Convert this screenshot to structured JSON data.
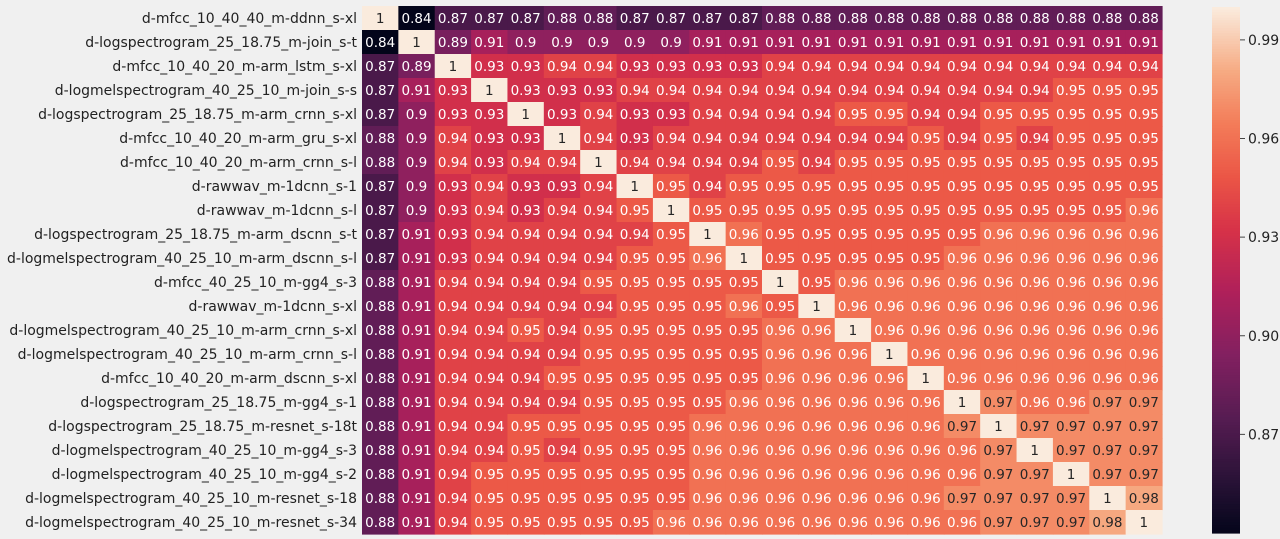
{
  "chart_data": {
    "type": "heatmap",
    "title": "",
    "xlabel": "",
    "ylabel": "",
    "labels": [
      "d-mfcc_10_40_40_m-ddnn_s-xl",
      "d-logspectrogram_25_18.75_m-join_s-t",
      "d-mfcc_10_40_20_m-arm_lstm_s-xl",
      "d-logmelspectrogram_40_25_10_m-join_s-s",
      "d-logspectrogram_25_18.75_m-arm_crnn_s-xl",
      "d-mfcc_10_40_20_m-arm_gru_s-xl",
      "d-mfcc_10_40_20_m-arm_crnn_s-l",
      "d-rawwav_m-1dcnn_s-1",
      "d-rawwav_m-1dcnn_s-l",
      "d-logspectrogram_25_18.75_m-arm_dscnn_s-t",
      "d-logmelspectrogram_40_25_10_m-arm_dscnn_s-l",
      "d-mfcc_40_25_10_m-gg4_s-3",
      "d-rawwav_m-1dcnn_s-xl",
      "d-logmelspectrogram_40_25_10_m-arm_crnn_s-xl",
      "d-logmelspectrogram_40_25_10_m-arm_crnn_s-l",
      "d-mfcc_10_40_20_m-arm_dscnn_s-xl",
      "d-logspectrogram_25_18.75_m-gg4_s-1",
      "d-logspectrogram_25_18.75_m-resnet_s-18t",
      "d-logmelspectrogram_40_25_10_m-gg4_s-3",
      "d-logmelspectrogram_40_25_10_m-gg4_s-2",
      "d-logmelspectrogram_40_25_10_m-resnet_s-18",
      "d-logmelspectrogram_40_25_10_m-resnet_s-34"
    ],
    "values": [
      [
        1,
        0.84,
        0.87,
        0.87,
        0.87,
        0.88,
        0.88,
        0.87,
        0.87,
        0.87,
        0.87,
        0.88,
        0.88,
        0.88,
        0.88,
        0.88,
        0.88,
        0.88,
        0.88,
        0.88,
        0.88,
        0.88
      ],
      [
        0.84,
        1,
        0.89,
        0.91,
        0.9,
        0.9,
        0.9,
        0.9,
        0.9,
        0.91,
        0.91,
        0.91,
        0.91,
        0.91,
        0.91,
        0.91,
        0.91,
        0.91,
        0.91,
        0.91,
        0.91,
        0.91
      ],
      [
        0.87,
        0.89,
        1,
        0.93,
        0.93,
        0.94,
        0.94,
        0.93,
        0.93,
        0.93,
        0.93,
        0.94,
        0.94,
        0.94,
        0.94,
        0.94,
        0.94,
        0.94,
        0.94,
        0.94,
        0.94,
        0.94
      ],
      [
        0.87,
        0.91,
        0.93,
        1,
        0.93,
        0.93,
        0.93,
        0.94,
        0.94,
        0.94,
        0.94,
        0.94,
        0.94,
        0.94,
        0.94,
        0.94,
        0.94,
        0.94,
        0.94,
        0.95,
        0.95,
        0.95
      ],
      [
        0.87,
        0.9,
        0.93,
        0.93,
        1,
        0.93,
        0.94,
        0.93,
        0.93,
        0.94,
        0.94,
        0.94,
        0.94,
        0.95,
        0.95,
        0.94,
        0.94,
        0.95,
        0.95,
        0.95,
        0.95,
        0.95
      ],
      [
        0.88,
        0.9,
        0.94,
        0.93,
        0.93,
        1,
        0.94,
        0.93,
        0.94,
        0.94,
        0.94,
        0.94,
        0.94,
        0.94,
        0.94,
        0.95,
        0.94,
        0.95,
        0.94,
        0.95,
        0.95,
        0.95
      ],
      [
        0.88,
        0.9,
        0.94,
        0.93,
        0.94,
        0.94,
        1,
        0.94,
        0.94,
        0.94,
        0.94,
        0.95,
        0.94,
        0.95,
        0.95,
        0.95,
        0.95,
        0.95,
        0.95,
        0.95,
        0.95,
        0.95
      ],
      [
        0.87,
        0.9,
        0.93,
        0.94,
        0.93,
        0.93,
        0.94,
        1,
        0.95,
        0.94,
        0.95,
        0.95,
        0.95,
        0.95,
        0.95,
        0.95,
        0.95,
        0.95,
        0.95,
        0.95,
        0.95,
        0.95
      ],
      [
        0.87,
        0.9,
        0.93,
        0.94,
        0.93,
        0.94,
        0.94,
        0.95,
        1,
        0.95,
        0.95,
        0.95,
        0.95,
        0.95,
        0.95,
        0.95,
        0.95,
        0.95,
        0.95,
        0.95,
        0.95,
        0.96
      ],
      [
        0.87,
        0.91,
        0.93,
        0.94,
        0.94,
        0.94,
        0.94,
        0.94,
        0.95,
        1,
        0.96,
        0.95,
        0.95,
        0.95,
        0.95,
        0.95,
        0.95,
        0.96,
        0.96,
        0.96,
        0.96,
        0.96
      ],
      [
        0.87,
        0.91,
        0.93,
        0.94,
        0.94,
        0.94,
        0.94,
        0.95,
        0.95,
        0.96,
        1,
        0.95,
        0.95,
        0.95,
        0.95,
        0.95,
        0.96,
        0.96,
        0.96,
        0.96,
        0.96,
        0.96
      ],
      [
        0.88,
        0.91,
        0.94,
        0.94,
        0.94,
        0.94,
        0.95,
        0.95,
        0.95,
        0.95,
        0.95,
        1,
        0.95,
        0.96,
        0.96,
        0.96,
        0.96,
        0.96,
        0.96,
        0.96,
        0.96,
        0.96
      ],
      [
        0.88,
        0.91,
        0.94,
        0.94,
        0.94,
        0.94,
        0.94,
        0.95,
        0.95,
        0.95,
        0.96,
        0.95,
        1,
        0.96,
        0.96,
        0.96,
        0.96,
        0.96,
        0.96,
        0.96,
        0.96,
        0.96
      ],
      [
        0.88,
        0.91,
        0.94,
        0.94,
        0.95,
        0.94,
        0.95,
        0.95,
        0.95,
        0.95,
        0.95,
        0.96,
        0.96,
        1,
        0.96,
        0.96,
        0.96,
        0.96,
        0.96,
        0.96,
        0.96,
        0.96
      ],
      [
        0.88,
        0.91,
        0.94,
        0.94,
        0.94,
        0.94,
        0.95,
        0.95,
        0.95,
        0.95,
        0.95,
        0.96,
        0.96,
        0.96,
        1,
        0.96,
        0.96,
        0.96,
        0.96,
        0.96,
        0.96,
        0.96
      ],
      [
        0.88,
        0.91,
        0.94,
        0.94,
        0.94,
        0.95,
        0.95,
        0.95,
        0.95,
        0.95,
        0.95,
        0.96,
        0.96,
        0.96,
        0.96,
        1,
        0.96,
        0.96,
        0.96,
        0.96,
        0.96,
        0.96
      ],
      [
        0.88,
        0.91,
        0.94,
        0.94,
        0.94,
        0.94,
        0.95,
        0.95,
        0.95,
        0.95,
        0.96,
        0.96,
        0.96,
        0.96,
        0.96,
        0.96,
        1,
        0.97,
        0.96,
        0.96,
        0.97,
        0.97
      ],
      [
        0.88,
        0.91,
        0.94,
        0.94,
        0.95,
        0.95,
        0.95,
        0.95,
        0.95,
        0.96,
        0.96,
        0.96,
        0.96,
        0.96,
        0.96,
        0.96,
        0.97,
        1,
        0.97,
        0.97,
        0.97,
        0.97
      ],
      [
        0.88,
        0.91,
        0.94,
        0.94,
        0.95,
        0.94,
        0.95,
        0.95,
        0.95,
        0.96,
        0.96,
        0.96,
        0.96,
        0.96,
        0.96,
        0.96,
        0.96,
        0.97,
        1,
        0.97,
        0.97,
        0.97
      ],
      [
        0.88,
        0.91,
        0.94,
        0.95,
        0.95,
        0.95,
        0.95,
        0.95,
        0.95,
        0.96,
        0.96,
        0.96,
        0.96,
        0.96,
        0.96,
        0.96,
        0.96,
        0.97,
        0.97,
        1,
        0.97,
        0.97
      ],
      [
        0.88,
        0.91,
        0.94,
        0.95,
        0.95,
        0.95,
        0.95,
        0.95,
        0.95,
        0.96,
        0.96,
        0.96,
        0.96,
        0.96,
        0.96,
        0.96,
        0.97,
        0.97,
        0.97,
        0.97,
        1,
        0.98
      ],
      [
        0.88,
        0.91,
        0.94,
        0.95,
        0.95,
        0.95,
        0.95,
        0.95,
        0.96,
        0.96,
        0.96,
        0.96,
        0.96,
        0.96,
        0.96,
        0.96,
        0.96,
        0.97,
        0.97,
        0.97,
        0.98,
        1
      ]
    ],
    "color_range": [
      0.84,
      1.0
    ],
    "colormap": "rocket",
    "colorbar_ticks": [
      0.87,
      0.9,
      0.93,
      0.96,
      0.99
    ],
    "colorbar_tick_labels": [
      "0.87",
      "0.90",
      "0.93",
      "0.96",
      "0.99"
    ],
    "background_color": "#f0f0f0",
    "grid": false,
    "legend": "colorbar-right"
  }
}
